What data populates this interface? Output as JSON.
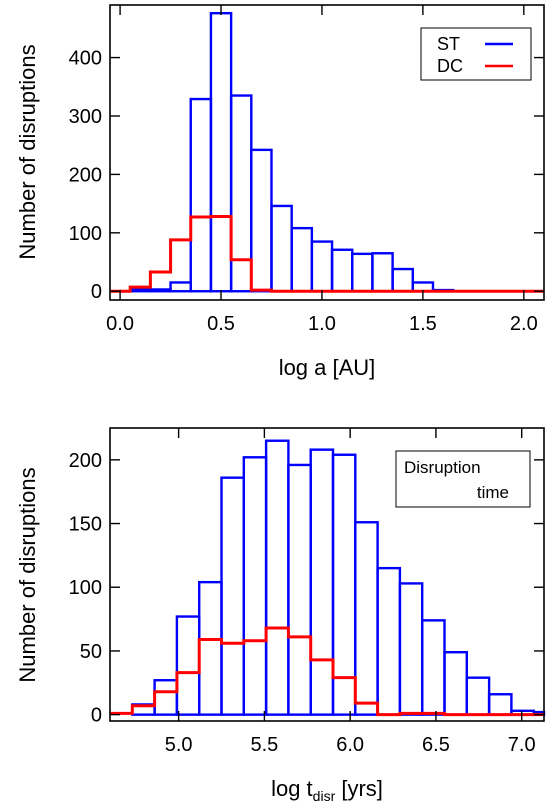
{
  "chart_data": [
    {
      "type": "bar",
      "style": "step-histogram",
      "xlabel": "log a [AU]",
      "ylabel": "Number of disruptions",
      "xlim": [
        -0.05,
        2.1
      ],
      "ylim": [
        -15,
        490
      ],
      "xticks": [
        0.0,
        0.5,
        1.0,
        1.5,
        2.0
      ],
      "xtick_labels": [
        "0.0",
        "0.5",
        "1.0",
        "1.5",
        "2.0"
      ],
      "yticks": [
        0,
        100,
        200,
        300,
        400
      ],
      "ytick_labels": [
        "0",
        "100",
        "200",
        "300",
        "400"
      ],
      "bin_edges": [
        -0.05,
        0.05,
        0.15,
        0.25,
        0.35,
        0.45,
        0.55,
        0.65,
        0.75,
        0.85,
        0.95,
        1.05,
        1.15,
        1.25,
        1.35,
        1.45,
        1.55,
        1.65,
        1.75,
        1.85,
        1.95,
        2.05,
        2.1
      ],
      "series": [
        {
          "name": "ST",
          "color": "#0000ff",
          "style": "bars",
          "values": [
            0,
            3,
            3,
            15,
            329,
            476,
            335,
            242,
            146,
            108,
            85,
            71,
            64,
            65,
            38,
            15,
            2,
            0,
            0,
            0,
            0,
            0
          ]
        },
        {
          "name": "DC",
          "color": "#ff0000",
          "style": "step",
          "values": [
            0,
            7,
            33,
            88,
            127,
            128,
            54,
            2,
            0,
            0,
            0,
            0,
            0,
            0,
            0,
            0,
            0,
            0,
            0,
            0,
            0,
            0
          ]
        }
      ],
      "legend": {
        "position": "top-right",
        "entries": [
          "ST",
          "DC"
        ]
      }
    },
    {
      "type": "bar",
      "style": "step-histogram",
      "xlabel_main": "log  t",
      "xlabel_sub": "disr",
      "xlabel_unit": " [yrs]",
      "ylabel": "Number of disruptions",
      "xlim": [
        4.6,
        7.13
      ],
      "ylim": [
        -5,
        225
      ],
      "xticks": [
        5.0,
        5.5,
        6.0,
        6.5,
        7.0
      ],
      "xtick_labels": [
        "5.0",
        "5.5",
        "6.0",
        "6.5",
        "7.0"
      ],
      "yticks": [
        0,
        50,
        100,
        150,
        200
      ],
      "ytick_labels": [
        "0",
        "50",
        "100",
        "150",
        "200"
      ],
      "bin_edges": [
        4.6,
        4.73,
        4.86,
        4.99,
        5.12,
        5.25,
        5.38,
        5.51,
        5.64,
        5.77,
        5.9,
        6.03,
        6.16,
        6.29,
        6.42,
        6.55,
        6.68,
        6.81,
        6.94,
        7.07,
        7.13
      ],
      "series": [
        {
          "name": "ST",
          "color": "#0000ff",
          "style": "bars",
          "values": [
            0,
            8,
            27,
            77,
            104,
            186,
            202,
            215,
            196,
            208,
            204,
            151,
            115,
            103,
            74,
            49,
            29,
            16,
            3,
            2
          ]
        },
        {
          "name": "DC",
          "color": "#ff0000",
          "style": "step",
          "values": [
            1,
            7,
            18,
            33,
            59,
            56,
            58,
            68,
            61,
            43,
            29,
            9,
            0,
            1,
            1,
            0,
            0,
            0,
            0,
            0
          ]
        }
      ],
      "annotation": [
        "Disruption",
        "time"
      ],
      "annotation_position": "top-right"
    }
  ]
}
